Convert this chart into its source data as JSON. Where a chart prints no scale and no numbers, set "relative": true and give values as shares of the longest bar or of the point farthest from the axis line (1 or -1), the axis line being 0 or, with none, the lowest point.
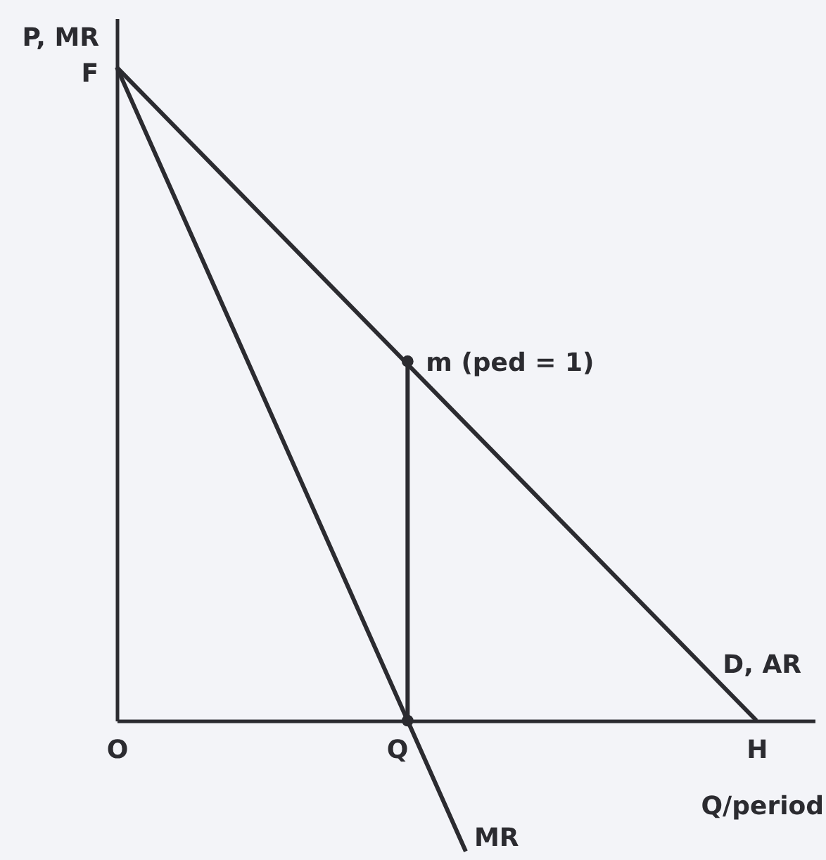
{
  "chart_data": {
    "type": "line",
    "relative": true,
    "ylabel": "P, MR",
    "xlabel": "Q/period",
    "categories": [
      "O",
      null,
      null,
      null,
      null,
      "Q",
      null,
      null,
      null,
      null,
      null,
      "H",
      null
    ],
    "series": [
      {
        "name": "D, AR",
        "color": "#2b2b30",
        "x": [
          "O",
          "H"
        ],
        "values": [
          1,
          0
        ]
      },
      {
        "name": "MR",
        "color": "#2b2b30",
        "values": [
          1,
          0.8,
          0.6,
          0.4,
          0.2,
          0,
          -0.2,
          null,
          null,
          null,
          null,
          null,
          null
        ]
      },
      {
        "color": "#2b2b30",
        "x": [
          "Q",
          "Q"
        ],
        "values": [
          0,
          0.55
        ],
        "marker": "circle"
      }
    ],
    "annotations": [
      {
        "text": "F",
        "x": "O",
        "y": 1
      },
      {
        "text": "m (ped = 1)",
        "x": "Q",
        "y": 0.55
      }
    ]
  }
}
